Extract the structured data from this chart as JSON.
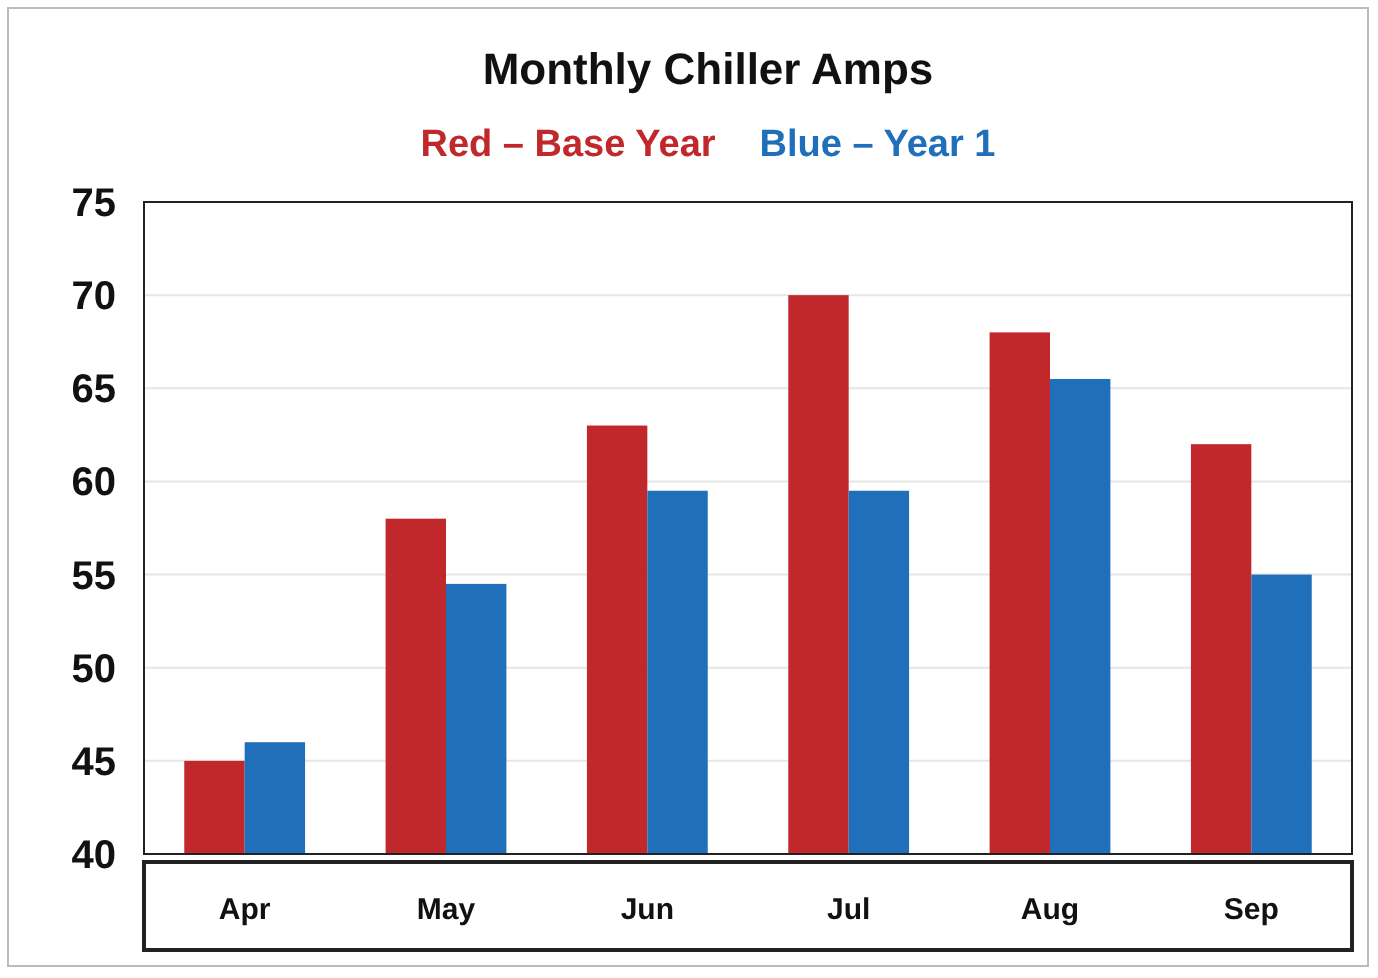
{
  "chart_data": {
    "type": "bar",
    "title": "Monthly Chiller Amps",
    "categories": [
      "Apr",
      "May",
      "Jun",
      "Jul",
      "Aug",
      "Sep"
    ],
    "series": [
      {
        "name": "Red – Base Year",
        "color": "#c0282b",
        "values": [
          45,
          58,
          63,
          70,
          68,
          62
        ]
      },
      {
        "name": "Blue – Year 1",
        "color": "#1f6fba",
        "values": [
          46,
          54.5,
          59.5,
          59.5,
          65.5,
          55
        ]
      }
    ],
    "ylim": [
      40,
      75
    ],
    "yticks": [
      40,
      45,
      50,
      55,
      60,
      65,
      70,
      75
    ],
    "grid": "y",
    "legend": "top"
  }
}
